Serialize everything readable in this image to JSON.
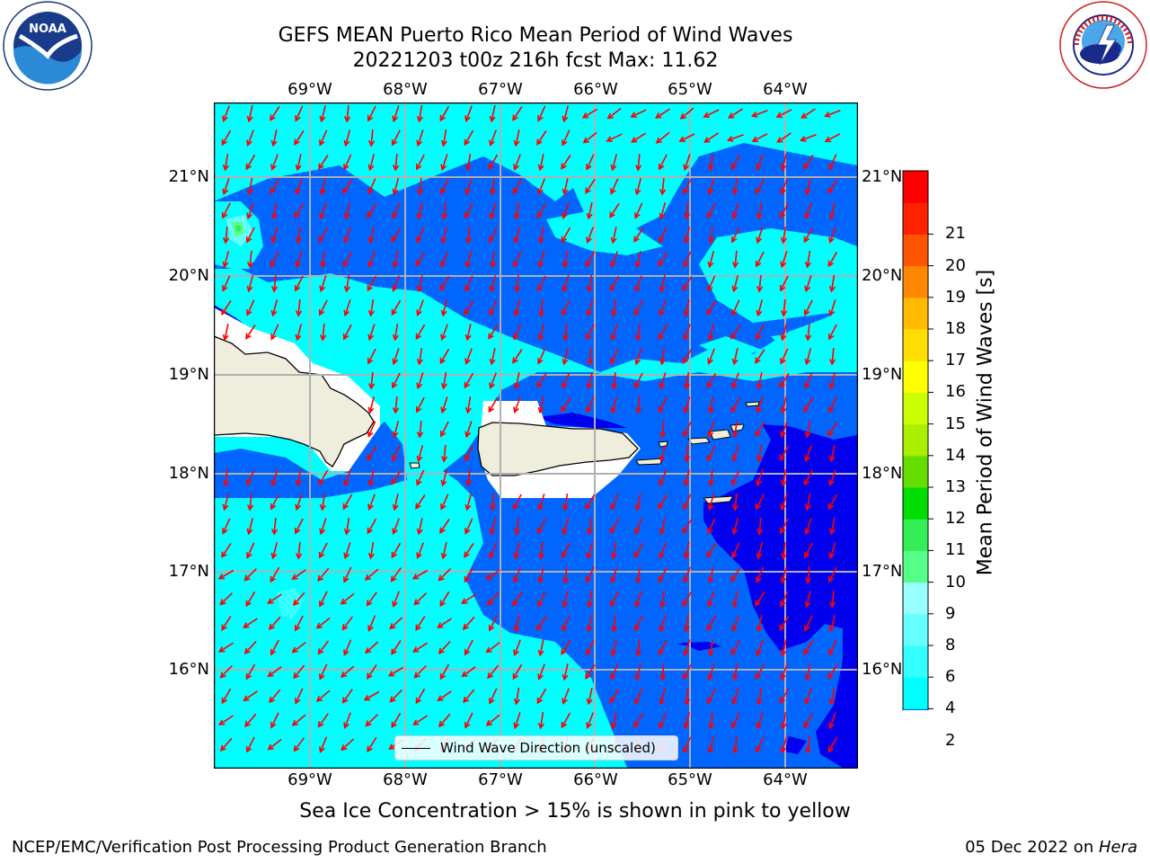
{
  "header": {
    "title_line1": "GEFS MEAN Puerto Rico Mean Period of Wind Waves",
    "title_line2": "20221203 t00z 216h fcst   Max: 11.62"
  },
  "logos": {
    "left": {
      "name": "NOAA",
      "ring_text": "NATIONAL OCEANIC AND ATMOSPHERIC ADMINISTRATION · U.S. DEPARTMENT OF COMMERCE"
    },
    "right": {
      "name": "NATIONAL WEATHER SERVICE"
    }
  },
  "map": {
    "lon_labels": [
      "69°W",
      "68°W",
      "67°W",
      "66°W",
      "65°W",
      "64°W"
    ],
    "lat_labels": [
      "21°N",
      "20°N",
      "19°N",
      "18°N",
      "17°N",
      "16°N"
    ],
    "legend_label": "Wind Wave Direction (unscaled)",
    "arrow_color": "#ff0000",
    "land_color": "#efeedc"
  },
  "colorbar": {
    "title": "Mean Period of Wind Waves [s]",
    "tick_labels": [
      "2",
      "4",
      "6",
      "8",
      "9",
      "10",
      "11",
      "12",
      "13",
      "14",
      "15",
      "16",
      "17",
      "18",
      "19",
      "20",
      "21"
    ],
    "colors": [
      "#0066ff",
      "#00ffff",
      "#33ffff",
      "#66ffff",
      "#99ffff",
      "#55ff88",
      "#33ee55",
      "#00dd00",
      "#66dd00",
      "#aaee00",
      "#ccff00",
      "#ffff00",
      "#ffdd00",
      "#ffbb00",
      "#ff8800",
      "#ff5500",
      "#ff2200",
      "#ff0000"
    ],
    "under_color": "#0000ee"
  },
  "sea_ice_note": "Sea Ice Concentration > 15% is shown in pink to yellow",
  "footer": {
    "left": "NCEP/EMC/Verification Post Processing Product Generation Branch",
    "right_prefix": "05 Dec 2022 on ",
    "right_host": "Hera"
  }
}
